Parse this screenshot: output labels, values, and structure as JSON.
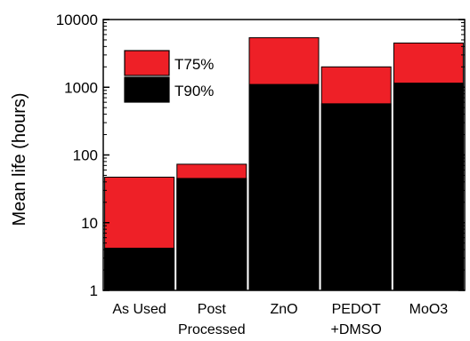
{
  "chart_data": {
    "type": "bar",
    "stacked": "overlay",
    "y_scale": "log",
    "ylim": [
      1,
      10000
    ],
    "ylabel": "Mean life (hours)",
    "xlabel": "",
    "title": "",
    "categories": [
      [
        "As Used"
      ],
      [
        "Post",
        "Processed"
      ],
      [
        "ZnO"
      ],
      [
        "PEDOT",
        "+DMSO"
      ],
      [
        "MoO3"
      ]
    ],
    "series": [
      {
        "name": "T75%",
        "color": "#ee2027",
        "values": [
          47,
          73,
          5400,
          2000,
          4500
        ]
      },
      {
        "name": "T90%",
        "color": "#000000",
        "values": [
          4.2,
          45,
          1100,
          570,
          1150
        ]
      }
    ],
    "y_ticks": [
      {
        "value": 1,
        "label": "1"
      },
      {
        "value": 10,
        "label": "10"
      },
      {
        "value": 100,
        "label": "100"
      },
      {
        "value": 1000,
        "label": "1000"
      },
      {
        "value": 10000,
        "label": "10000"
      }
    ],
    "legend_position": "top-left",
    "grid": false
  }
}
